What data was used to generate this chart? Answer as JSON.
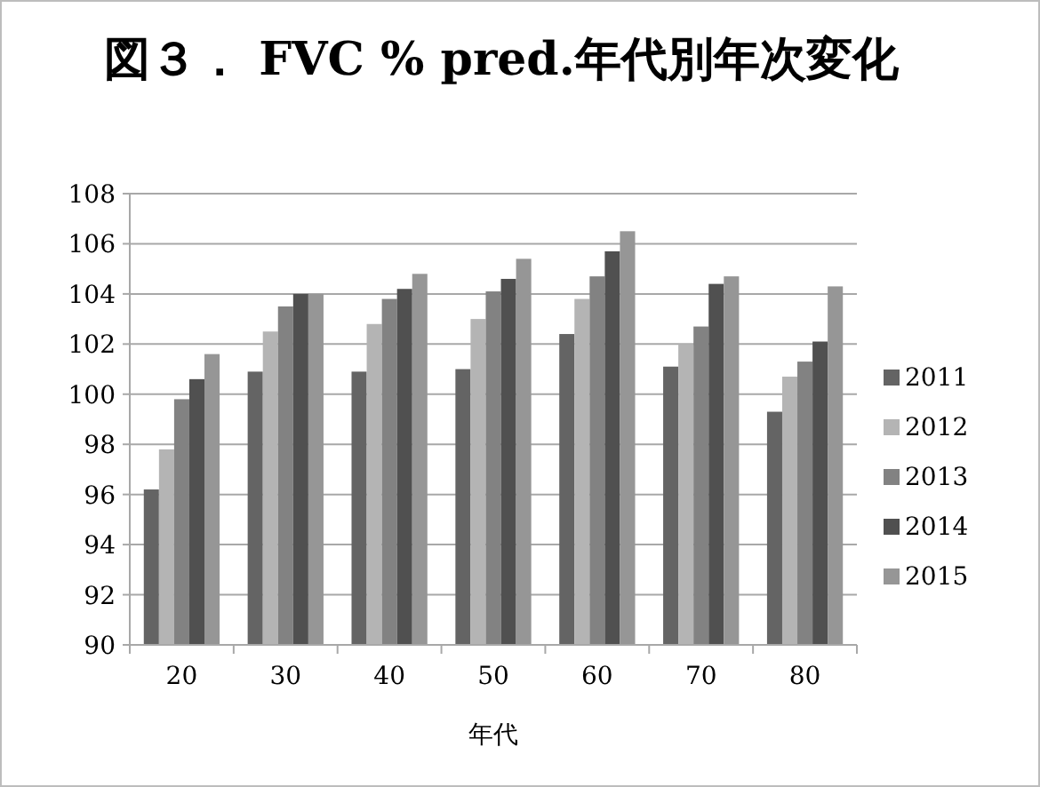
{
  "chart_data": {
    "type": "bar",
    "title": "図３． FVC % pred.年代別年次変化",
    "xlabel": "年代",
    "categories": [
      "20",
      "30",
      "40",
      "50",
      "60",
      "70",
      "80"
    ],
    "series": [
      {
        "name": "2011",
        "color": "#646464",
        "values": [
          96.2,
          100.9,
          100.9,
          101.0,
          102.4,
          101.1,
          99.3
        ]
      },
      {
        "name": "2012",
        "color": "#b4b4b4",
        "values": [
          97.8,
          102.5,
          102.8,
          103.0,
          103.8,
          102.0,
          100.7
        ]
      },
      {
        "name": "2013",
        "color": "#828282",
        "values": [
          99.8,
          103.5,
          103.8,
          104.1,
          104.7,
          102.7,
          101.3
        ]
      },
      {
        "name": "2014",
        "color": "#505050",
        "values": [
          100.6,
          104.0,
          104.2,
          104.6,
          105.7,
          104.4,
          102.1
        ]
      },
      {
        "name": "2015",
        "color": "#969696",
        "values": [
          101.6,
          104.0,
          104.8,
          105.4,
          106.5,
          104.7,
          104.3
        ]
      }
    ],
    "ylim": [
      90,
      108
    ],
    "yticks": [
      90,
      92,
      94,
      96,
      98,
      100,
      102,
      104,
      106,
      108
    ],
    "grid": "y",
    "legend": "right"
  }
}
